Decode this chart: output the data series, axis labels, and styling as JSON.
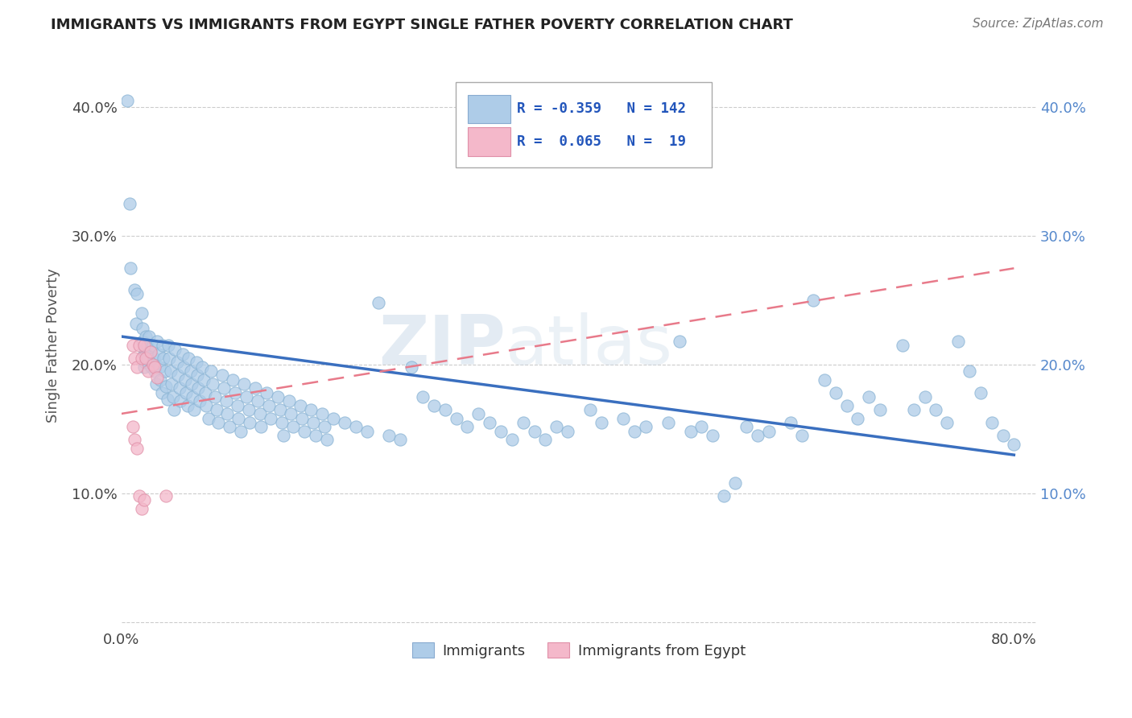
{
  "title": "IMMIGRANTS VS IMMIGRANTS FROM EGYPT SINGLE FATHER POVERTY CORRELATION CHART",
  "source": "Source: ZipAtlas.com",
  "ylabel": "Single Father Poverty",
  "xlim": [
    0.0,
    0.82
  ],
  "ylim": [
    -0.005,
    0.435
  ],
  "xtick_vals": [
    0.0,
    0.1,
    0.2,
    0.3,
    0.4,
    0.5,
    0.6,
    0.7,
    0.8
  ],
  "ytick_vals": [
    0.0,
    0.1,
    0.2,
    0.3,
    0.4
  ],
  "color_immigrants": "#aecce8",
  "color_egypt": "#f4b8ca",
  "line_color_immigrants": "#3a6fbf",
  "line_color_egypt": "#e87a8a",
  "watermark_zip": "ZIP",
  "watermark_atlas": "atlas",
  "background_color": "#ffffff",
  "scatter_immigrants": [
    [
      0.005,
      0.405
    ],
    [
      0.007,
      0.325
    ],
    [
      0.008,
      0.275
    ],
    [
      0.012,
      0.258
    ],
    [
      0.013,
      0.232
    ],
    [
      0.014,
      0.255
    ],
    [
      0.018,
      0.24
    ],
    [
      0.019,
      0.228
    ],
    [
      0.019,
      0.218
    ],
    [
      0.02,
      0.208
    ],
    [
      0.02,
      0.198
    ],
    [
      0.021,
      0.212
    ],
    [
      0.021,
      0.202
    ],
    [
      0.022,
      0.222
    ],
    [
      0.023,
      0.215
    ],
    [
      0.024,
      0.205
    ],
    [
      0.025,
      0.222
    ],
    [
      0.026,
      0.21
    ],
    [
      0.027,
      0.198
    ],
    [
      0.028,
      0.215
    ],
    [
      0.029,
      0.205
    ],
    [
      0.03,
      0.195
    ],
    [
      0.031,
      0.185
    ],
    [
      0.032,
      0.218
    ],
    [
      0.033,
      0.208
    ],
    [
      0.034,
      0.198
    ],
    [
      0.035,
      0.188
    ],
    [
      0.036,
      0.178
    ],
    [
      0.037,
      0.215
    ],
    [
      0.038,
      0.205
    ],
    [
      0.039,
      0.195
    ],
    [
      0.04,
      0.183
    ],
    [
      0.041,
      0.173
    ],
    [
      0.042,
      0.215
    ],
    [
      0.043,
      0.205
    ],
    [
      0.044,
      0.195
    ],
    [
      0.045,
      0.185
    ],
    [
      0.046,
      0.175
    ],
    [
      0.047,
      0.165
    ],
    [
      0.048,
      0.212
    ],
    [
      0.05,
      0.202
    ],
    [
      0.051,
      0.192
    ],
    [
      0.052,
      0.182
    ],
    [
      0.053,
      0.172
    ],
    [
      0.055,
      0.208
    ],
    [
      0.056,
      0.198
    ],
    [
      0.057,
      0.188
    ],
    [
      0.058,
      0.178
    ],
    [
      0.059,
      0.168
    ],
    [
      0.06,
      0.205
    ],
    [
      0.062,
      0.195
    ],
    [
      0.063,
      0.185
    ],
    [
      0.064,
      0.175
    ],
    [
      0.065,
      0.165
    ],
    [
      0.067,
      0.202
    ],
    [
      0.068,
      0.192
    ],
    [
      0.069,
      0.182
    ],
    [
      0.07,
      0.172
    ],
    [
      0.072,
      0.198
    ],
    [
      0.074,
      0.188
    ],
    [
      0.075,
      0.178
    ],
    [
      0.076,
      0.168
    ],
    [
      0.078,
      0.158
    ],
    [
      0.08,
      0.195
    ],
    [
      0.082,
      0.185
    ],
    [
      0.084,
      0.175
    ],
    [
      0.085,
      0.165
    ],
    [
      0.087,
      0.155
    ],
    [
      0.09,
      0.192
    ],
    [
      0.092,
      0.182
    ],
    [
      0.094,
      0.172
    ],
    [
      0.095,
      0.162
    ],
    [
      0.097,
      0.152
    ],
    [
      0.1,
      0.188
    ],
    [
      0.102,
      0.178
    ],
    [
      0.104,
      0.168
    ],
    [
      0.105,
      0.158
    ],
    [
      0.107,
      0.148
    ],
    [
      0.11,
      0.185
    ],
    [
      0.112,
      0.175
    ],
    [
      0.114,
      0.165
    ],
    [
      0.115,
      0.155
    ],
    [
      0.12,
      0.182
    ],
    [
      0.122,
      0.172
    ],
    [
      0.124,
      0.162
    ],
    [
      0.125,
      0.152
    ],
    [
      0.13,
      0.178
    ],
    [
      0.132,
      0.168
    ],
    [
      0.134,
      0.158
    ],
    [
      0.14,
      0.175
    ],
    [
      0.142,
      0.165
    ],
    [
      0.144,
      0.155
    ],
    [
      0.145,
      0.145
    ],
    [
      0.15,
      0.172
    ],
    [
      0.152,
      0.162
    ],
    [
      0.154,
      0.152
    ],
    [
      0.16,
      0.168
    ],
    [
      0.162,
      0.158
    ],
    [
      0.164,
      0.148
    ],
    [
      0.17,
      0.165
    ],
    [
      0.172,
      0.155
    ],
    [
      0.174,
      0.145
    ],
    [
      0.18,
      0.162
    ],
    [
      0.182,
      0.152
    ],
    [
      0.184,
      0.142
    ],
    [
      0.19,
      0.158
    ],
    [
      0.2,
      0.155
    ],
    [
      0.21,
      0.152
    ],
    [
      0.22,
      0.148
    ],
    [
      0.23,
      0.248
    ],
    [
      0.24,
      0.145
    ],
    [
      0.25,
      0.142
    ],
    [
      0.26,
      0.198
    ],
    [
      0.27,
      0.175
    ],
    [
      0.28,
      0.168
    ],
    [
      0.29,
      0.165
    ],
    [
      0.3,
      0.158
    ],
    [
      0.31,
      0.152
    ],
    [
      0.32,
      0.162
    ],
    [
      0.33,
      0.155
    ],
    [
      0.34,
      0.148
    ],
    [
      0.35,
      0.142
    ],
    [
      0.36,
      0.155
    ],
    [
      0.37,
      0.148
    ],
    [
      0.38,
      0.142
    ],
    [
      0.39,
      0.152
    ],
    [
      0.4,
      0.148
    ],
    [
      0.42,
      0.165
    ],
    [
      0.43,
      0.155
    ],
    [
      0.45,
      0.158
    ],
    [
      0.46,
      0.148
    ],
    [
      0.47,
      0.152
    ],
    [
      0.49,
      0.155
    ],
    [
      0.5,
      0.218
    ],
    [
      0.51,
      0.148
    ],
    [
      0.52,
      0.152
    ],
    [
      0.53,
      0.145
    ],
    [
      0.54,
      0.098
    ],
    [
      0.55,
      0.108
    ],
    [
      0.56,
      0.152
    ],
    [
      0.57,
      0.145
    ],
    [
      0.58,
      0.148
    ],
    [
      0.6,
      0.155
    ],
    [
      0.61,
      0.145
    ],
    [
      0.62,
      0.25
    ],
    [
      0.63,
      0.188
    ],
    [
      0.64,
      0.178
    ],
    [
      0.65,
      0.168
    ],
    [
      0.66,
      0.158
    ],
    [
      0.67,
      0.175
    ],
    [
      0.68,
      0.165
    ],
    [
      0.7,
      0.215
    ],
    [
      0.71,
      0.165
    ],
    [
      0.72,
      0.175
    ],
    [
      0.73,
      0.165
    ],
    [
      0.74,
      0.155
    ],
    [
      0.75,
      0.218
    ],
    [
      0.76,
      0.195
    ],
    [
      0.77,
      0.178
    ],
    [
      0.78,
      0.155
    ],
    [
      0.79,
      0.145
    ],
    [
      0.8,
      0.138
    ]
  ],
  "scatter_egypt": [
    [
      0.01,
      0.215
    ],
    [
      0.012,
      0.205
    ],
    [
      0.014,
      0.198
    ],
    [
      0.016,
      0.215
    ],
    [
      0.018,
      0.205
    ],
    [
      0.02,
      0.215
    ],
    [
      0.022,
      0.205
    ],
    [
      0.024,
      0.195
    ],
    [
      0.026,
      0.21
    ],
    [
      0.028,
      0.2
    ],
    [
      0.03,
      0.198
    ],
    [
      0.032,
      0.19
    ],
    [
      0.01,
      0.152
    ],
    [
      0.012,
      0.142
    ],
    [
      0.014,
      0.135
    ],
    [
      0.016,
      0.098
    ],
    [
      0.018,
      0.088
    ],
    [
      0.02,
      0.095
    ],
    [
      0.04,
      0.098
    ]
  ],
  "immigrants_line_x": [
    0.0,
    0.8
  ],
  "immigrants_line_y": [
    0.222,
    0.13
  ],
  "egypt_line_x": [
    0.0,
    0.8
  ],
  "egypt_line_y": [
    0.162,
    0.275
  ]
}
